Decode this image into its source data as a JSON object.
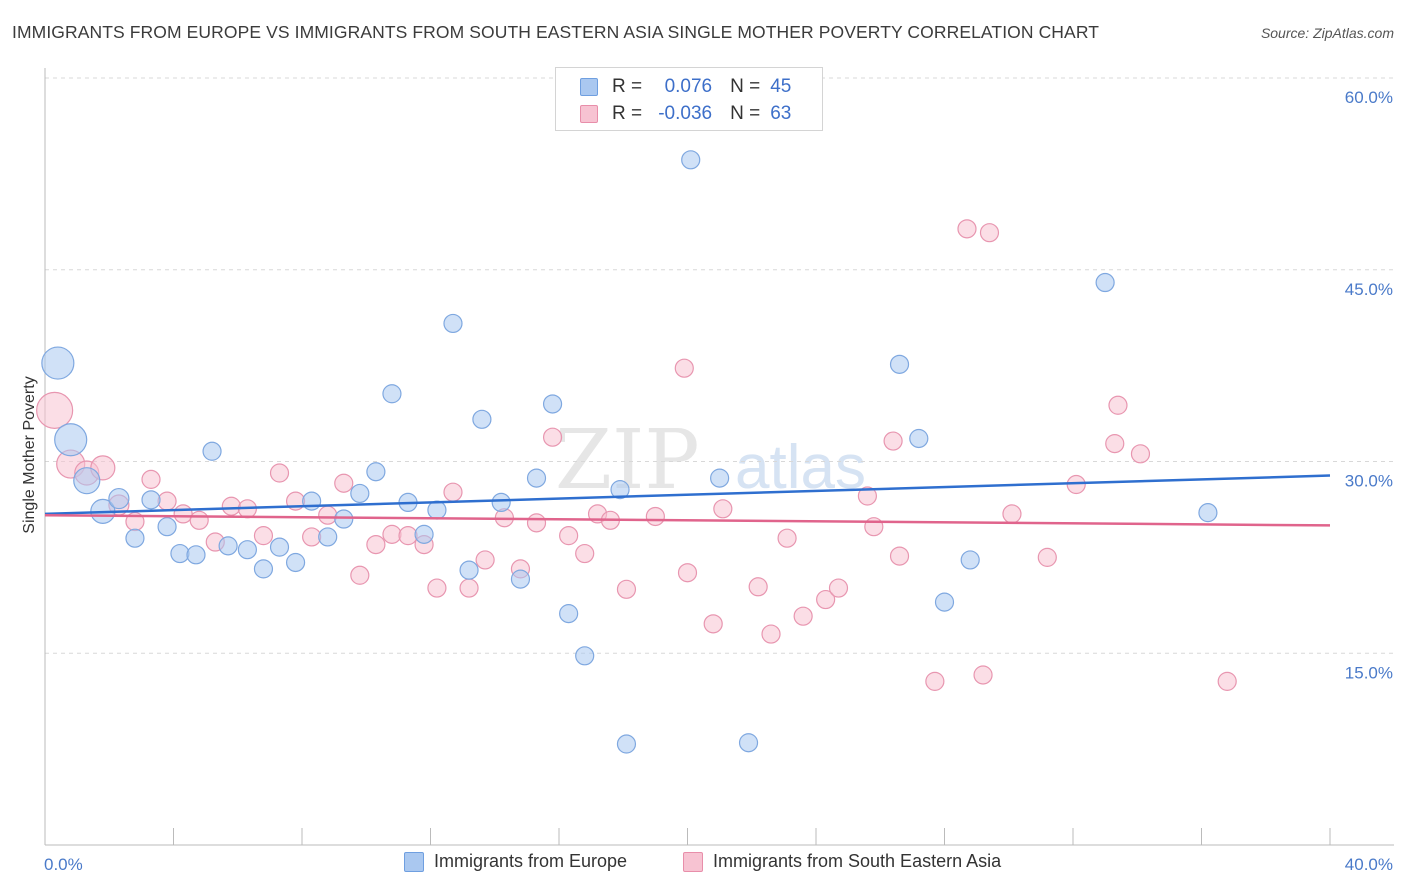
{
  "header": {
    "title": "IMMIGRANTS FROM EUROPE VS IMMIGRANTS FROM SOUTH EASTERN ASIA SINGLE MOTHER POVERTY CORRELATION CHART",
    "source": "Source: ZipAtlas.com"
  },
  "watermark": {
    "zip": "ZIP",
    "atlas": "atlas"
  },
  "legend": {
    "r_label": "R =",
    "n_label": "N =",
    "rows": [
      {
        "r": "0.076",
        "n": "45",
        "color": "#aac8f0",
        "border": "#6f9fe0"
      },
      {
        "r": "-0.036",
        "n": "63",
        "color": "#f7c3d2",
        "border": "#e88eaa"
      }
    ]
  },
  "bottom_legend": {
    "europe": "Immigrants from Europe",
    "asia": "Immigrants from South Eastern Asia"
  },
  "colors": {
    "europe_fill": "#aac8f0",
    "europe_stroke": "#7fa8e0",
    "europe_line": "#2f6fcf",
    "asia_fill": "#f7c3d2",
    "asia_stroke": "#e896b0",
    "asia_line": "#e0648c",
    "grid": "#d8d8d8",
    "tick_text": "#4a7ac9"
  },
  "chart_data": {
    "type": "scatter",
    "title": "IMMIGRANTS FROM EUROPE VS IMMIGRANTS FROM SOUTH EASTERN ASIA SINGLE MOTHER POVERTY CORRELATION CHART",
    "xlabel": "",
    "ylabel": "Single Mother Poverty",
    "xlim": [
      0,
      40
    ],
    "ylim": [
      0,
      60
    ],
    "x_tick_labels": [
      "0.0%",
      "40.0%"
    ],
    "y_ticks": [
      15,
      30,
      45,
      60
    ],
    "y_tick_labels": [
      "15.0%",
      "30.0%",
      "45.0%",
      "60.0%"
    ],
    "grid": "horizontal dashed",
    "legend_position": "top-center",
    "series": [
      {
        "name": "Immigrants from Europe",
        "r": 0.076,
        "n": 45,
        "trend": {
          "x": [
            0,
            40
          ],
          "y": [
            25.9,
            28.9
          ]
        },
        "points": [
          {
            "x": 0.4,
            "y": 37.7,
            "size": 16
          },
          {
            "x": 0.8,
            "y": 31.7,
            "size": 16
          },
          {
            "x": 1.3,
            "y": 28.5,
            "size": 13
          },
          {
            "x": 1.8,
            "y": 26.1,
            "size": 12
          },
          {
            "x": 2.3,
            "y": 27.1,
            "size": 10
          },
          {
            "x": 2.8,
            "y": 24.0,
            "size": 9
          },
          {
            "x": 3.3,
            "y": 27.0,
            "size": 9
          },
          {
            "x": 3.8,
            "y": 24.9,
            "size": 9
          },
          {
            "x": 4.2,
            "y": 22.8,
            "size": 9
          },
          {
            "x": 4.7,
            "y": 22.7,
            "size": 9
          },
          {
            "x": 5.2,
            "y": 30.8,
            "size": 9
          },
          {
            "x": 5.7,
            "y": 23.4,
            "size": 9
          },
          {
            "x": 6.3,
            "y": 23.1,
            "size": 9
          },
          {
            "x": 6.8,
            "y": 21.6,
            "size": 9
          },
          {
            "x": 7.3,
            "y": 23.3,
            "size": 9
          },
          {
            "x": 7.8,
            "y": 22.1,
            "size": 9
          },
          {
            "x": 8.3,
            "y": 26.9,
            "size": 9
          },
          {
            "x": 8.8,
            "y": 24.1,
            "size": 9
          },
          {
            "x": 9.3,
            "y": 25.5,
            "size": 9
          },
          {
            "x": 9.8,
            "y": 27.5,
            "size": 9
          },
          {
            "x": 10.3,
            "y": 29.2,
            "size": 9
          },
          {
            "x": 10.8,
            "y": 35.3,
            "size": 9
          },
          {
            "x": 11.3,
            "y": 26.8,
            "size": 9
          },
          {
            "x": 11.8,
            "y": 24.3,
            "size": 9
          },
          {
            "x": 12.2,
            "y": 26.2,
            "size": 9
          },
          {
            "x": 12.7,
            "y": 40.8,
            "size": 9
          },
          {
            "x": 13.2,
            "y": 21.5,
            "size": 9
          },
          {
            "x": 13.6,
            "y": 33.3,
            "size": 9
          },
          {
            "x": 14.2,
            "y": 26.8,
            "size": 9
          },
          {
            "x": 14.8,
            "y": 20.8,
            "size": 9
          },
          {
            "x": 15.3,
            "y": 28.7,
            "size": 9
          },
          {
            "x": 15.8,
            "y": 34.5,
            "size": 9
          },
          {
            "x": 16.3,
            "y": 18.1,
            "size": 9
          },
          {
            "x": 16.8,
            "y": 14.8,
            "size": 9
          },
          {
            "x": 17.9,
            "y": 27.8,
            "size": 9
          },
          {
            "x": 18.1,
            "y": 7.9,
            "size": 9
          },
          {
            "x": 20.1,
            "y": 53.6,
            "size": 9
          },
          {
            "x": 21.0,
            "y": 28.7,
            "size": 9
          },
          {
            "x": 21.9,
            "y": 8.0,
            "size": 9
          },
          {
            "x": 26.6,
            "y": 37.6,
            "size": 9
          },
          {
            "x": 27.2,
            "y": 31.8,
            "size": 9
          },
          {
            "x": 28.0,
            "y": 19.0,
            "size": 9
          },
          {
            "x": 28.8,
            "y": 22.3,
            "size": 9
          },
          {
            "x": 33.0,
            "y": 44.0,
            "size": 9
          },
          {
            "x": 36.2,
            "y": 26.0,
            "size": 9
          }
        ]
      },
      {
        "name": "Immigrants from South Eastern Asia",
        "r": -0.036,
        "n": 63,
        "trend": {
          "x": [
            0,
            40
          ],
          "y": [
            25.8,
            25.0
          ]
        },
        "points": [
          {
            "x": 0.3,
            "y": 34.0,
            "size": 18
          },
          {
            "x": 0.8,
            "y": 29.8,
            "size": 14
          },
          {
            "x": 1.3,
            "y": 29.1,
            "size": 12
          },
          {
            "x": 1.8,
            "y": 29.5,
            "size": 12
          },
          {
            "x": 2.3,
            "y": 26.6,
            "size": 10
          },
          {
            "x": 2.8,
            "y": 25.3,
            "size": 9
          },
          {
            "x": 3.3,
            "y": 28.6,
            "size": 9
          },
          {
            "x": 3.8,
            "y": 26.9,
            "size": 9
          },
          {
            "x": 4.3,
            "y": 25.9,
            "size": 9
          },
          {
            "x": 4.8,
            "y": 25.4,
            "size": 9
          },
          {
            "x": 5.3,
            "y": 23.7,
            "size": 9
          },
          {
            "x": 5.8,
            "y": 26.5,
            "size": 9
          },
          {
            "x": 6.3,
            "y": 26.3,
            "size": 9
          },
          {
            "x": 6.8,
            "y": 24.2,
            "size": 9
          },
          {
            "x": 7.3,
            "y": 29.1,
            "size": 9
          },
          {
            "x": 7.8,
            "y": 26.9,
            "size": 9
          },
          {
            "x": 8.3,
            "y": 24.1,
            "size": 9
          },
          {
            "x": 8.8,
            "y": 25.8,
            "size": 9
          },
          {
            "x": 9.3,
            "y": 28.3,
            "size": 9
          },
          {
            "x": 9.8,
            "y": 21.1,
            "size": 9
          },
          {
            "x": 10.3,
            "y": 23.5,
            "size": 9
          },
          {
            "x": 10.8,
            "y": 24.3,
            "size": 9
          },
          {
            "x": 11.3,
            "y": 24.2,
            "size": 9
          },
          {
            "x": 11.8,
            "y": 23.5,
            "size": 9
          },
          {
            "x": 12.2,
            "y": 20.1,
            "size": 9
          },
          {
            "x": 12.7,
            "y": 27.6,
            "size": 9
          },
          {
            "x": 13.2,
            "y": 20.1,
            "size": 9
          },
          {
            "x": 13.7,
            "y": 22.3,
            "size": 9
          },
          {
            "x": 14.3,
            "y": 25.6,
            "size": 9
          },
          {
            "x": 14.8,
            "y": 21.6,
            "size": 9
          },
          {
            "x": 15.3,
            "y": 25.2,
            "size": 9
          },
          {
            "x": 15.8,
            "y": 31.9,
            "size": 9
          },
          {
            "x": 16.3,
            "y": 24.2,
            "size": 9
          },
          {
            "x": 16.8,
            "y": 22.8,
            "size": 9
          },
          {
            "x": 17.2,
            "y": 25.9,
            "size": 9
          },
          {
            "x": 17.6,
            "y": 25.4,
            "size": 9
          },
          {
            "x": 18.1,
            "y": 20.0,
            "size": 9
          },
          {
            "x": 19.0,
            "y": 25.7,
            "size": 9
          },
          {
            "x": 19.9,
            "y": 37.3,
            "size": 9
          },
          {
            "x": 20.0,
            "y": 21.3,
            "size": 9
          },
          {
            "x": 20.8,
            "y": 17.3,
            "size": 9
          },
          {
            "x": 21.1,
            "y": 26.3,
            "size": 9
          },
          {
            "x": 22.2,
            "y": 20.2,
            "size": 9
          },
          {
            "x": 22.6,
            "y": 16.5,
            "size": 9
          },
          {
            "x": 23.1,
            "y": 24.0,
            "size": 9
          },
          {
            "x": 23.6,
            "y": 17.9,
            "size": 9
          },
          {
            "x": 24.3,
            "y": 19.2,
            "size": 9
          },
          {
            "x": 24.7,
            "y": 20.1,
            "size": 9
          },
          {
            "x": 25.6,
            "y": 27.3,
            "size": 9
          },
          {
            "x": 25.8,
            "y": 24.9,
            "size": 9
          },
          {
            "x": 26.4,
            "y": 31.6,
            "size": 9
          },
          {
            "x": 26.6,
            "y": 22.6,
            "size": 9
          },
          {
            "x": 27.7,
            "y": 12.8,
            "size": 9
          },
          {
            "x": 28.7,
            "y": 48.2,
            "size": 9
          },
          {
            "x": 29.2,
            "y": 13.3,
            "size": 9
          },
          {
            "x": 29.4,
            "y": 47.9,
            "size": 9
          },
          {
            "x": 30.1,
            "y": 25.9,
            "size": 9
          },
          {
            "x": 31.2,
            "y": 22.5,
            "size": 9
          },
          {
            "x": 32.1,
            "y": 28.2,
            "size": 9
          },
          {
            "x": 33.3,
            "y": 31.4,
            "size": 9
          },
          {
            "x": 33.4,
            "y": 34.4,
            "size": 9
          },
          {
            "x": 34.1,
            "y": 30.6,
            "size": 9
          },
          {
            "x": 36.8,
            "y": 12.8,
            "size": 9
          }
        ]
      }
    ]
  }
}
